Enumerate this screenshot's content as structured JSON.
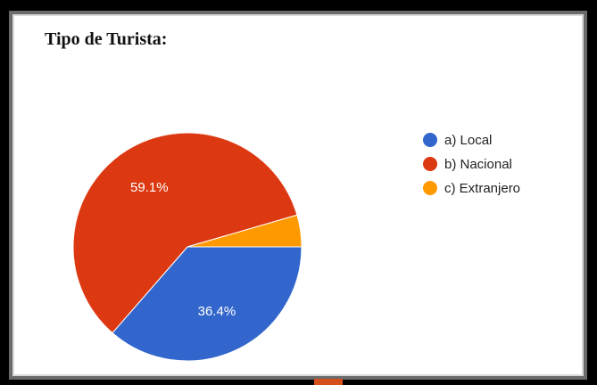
{
  "chart_data": {
    "type": "pie",
    "title": "Tipo de Turista:",
    "slices": [
      {
        "label": "a) Local",
        "value": 36.4,
        "color": "#3366cc",
        "data_label": "36.4%"
      },
      {
        "label": "b) Nacional",
        "value": 59.1,
        "color": "#dc3912",
        "data_label": "59.1%"
      },
      {
        "label": "c) Extranjero",
        "value": 4.5,
        "color": "#ff9900",
        "data_label": ""
      }
    ],
    "legend_position": "right"
  }
}
